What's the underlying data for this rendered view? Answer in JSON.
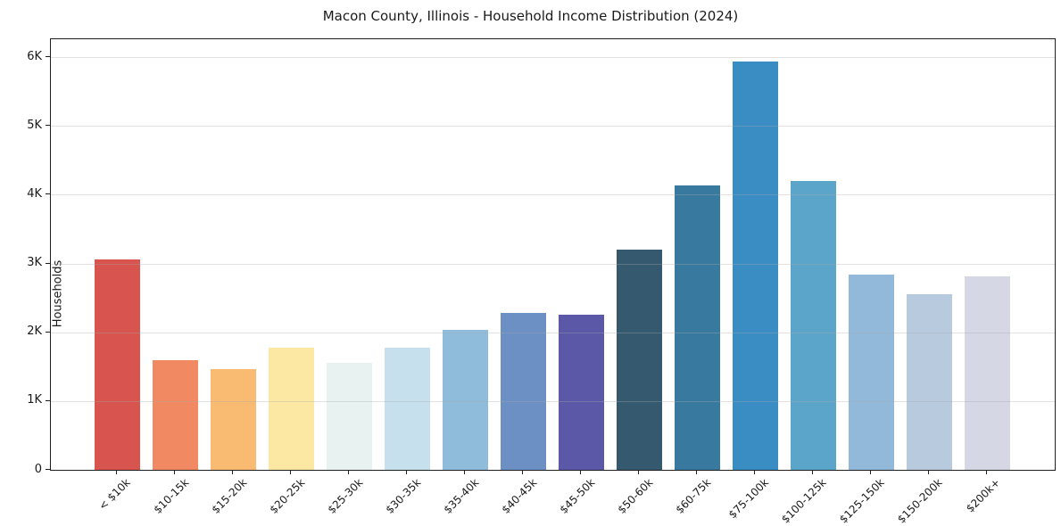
{
  "title": "Macon County, Illinois - Household Income Distribution (2024)",
  "colors": {
    "background": "#ffffff",
    "spine": "#1f1f1f",
    "grid": "#e6e6e6",
    "text": "#1a1a1a"
  },
  "chart_data": {
    "type": "bar",
    "title": "Macon County, Illinois - Household Income Distribution (2024)",
    "xlabel": "",
    "ylabel": "Households",
    "categories": [
      "< $10k",
      "$10-15k",
      "$15-20k",
      "$20-25k",
      "$25-30k",
      "$30-35k",
      "$35-40k",
      "$40-45k",
      "$45-50k",
      "$50-60k",
      "$60-75k",
      "$75-100k",
      "$100-125k",
      "$125-150k",
      "$150-200k",
      "$200k+"
    ],
    "values": [
      3060,
      1590,
      1460,
      1780,
      1560,
      1780,
      2030,
      2280,
      2260,
      3200,
      4130,
      5930,
      4200,
      2840,
      2550,
      2810
    ],
    "bar_colors": [
      "#d8544f",
      "#f18a63",
      "#f9ba71",
      "#fce8a3",
      "#e7f2f1",
      "#c6e1ed",
      "#90bcdc",
      "#6c90c4",
      "#5b59a7",
      "#35596e",
      "#387a9f",
      "#3a8dc2",
      "#5ca5ca",
      "#92b8da",
      "#b7cade",
      "#d5d7e5"
    ],
    "ytick_labels": [
      "0",
      "1K",
      "2K",
      "3K",
      "4K",
      "5K",
      "6K"
    ],
    "ytick_values": [
      0,
      1000,
      2000,
      3000,
      4000,
      5000,
      6000
    ],
    "ylim": [
      0,
      6260
    ],
    "grid": "horizontal",
    "grid_on_top": true,
    "legend": "none"
  }
}
